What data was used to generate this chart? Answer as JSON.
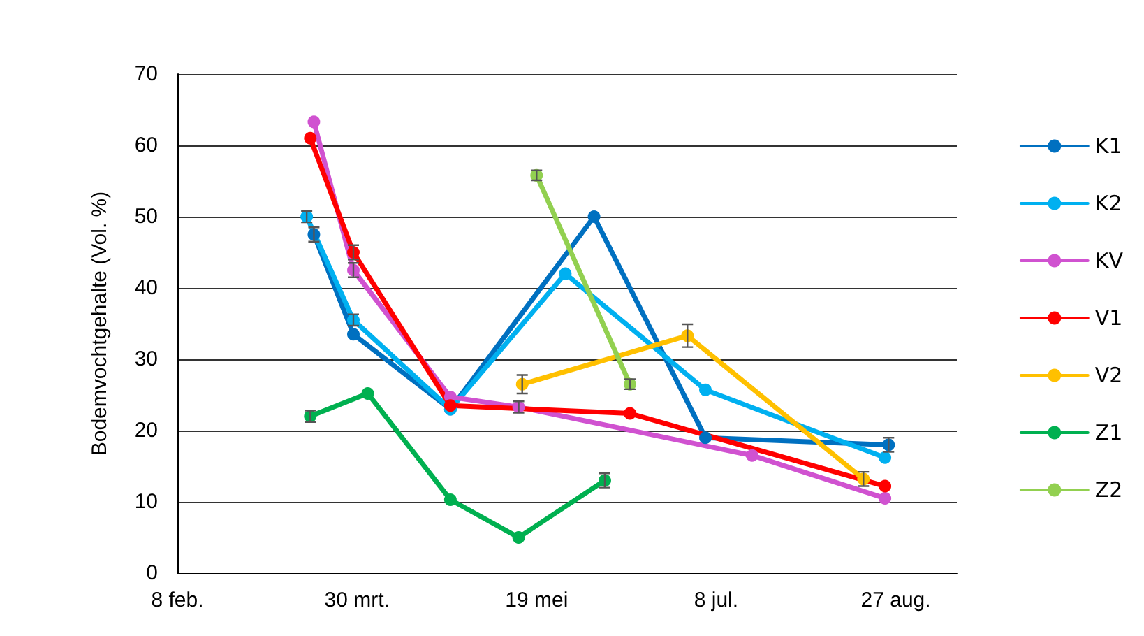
{
  "chart_data": {
    "type": "line",
    "ylabel": "Bodemvochtgehalte (Vol. %)",
    "xlim": [
      "--02-08",
      "--09-13"
    ],
    "ylim": [
      0,
      70
    ],
    "yticks": [
      0,
      10,
      20,
      30,
      40,
      50,
      60,
      70
    ],
    "xticks": [
      {
        "value": "--02-08",
        "label": "8 feb."
      },
      {
        "value": "--03-30",
        "label": "30 mrt."
      },
      {
        "value": "--05-19",
        "label": "19 mei"
      },
      {
        "value": "--07-08",
        "label": "8 jul."
      },
      {
        "value": "--08-27",
        "label": "27 aug."
      }
    ],
    "grid": "y",
    "legend": "right",
    "marker": "circle",
    "line_style": "solid",
    "series": [
      {
        "name": "K1",
        "color": "#0070c0",
        "x": [
          "--03-18",
          "--03-29",
          "--04-25",
          "--06-04",
          "--07-05",
          "--08-25"
        ],
        "values": [
          47.5,
          33.5,
          23,
          50,
          19,
          18
        ],
        "errors": [
          1.0,
          null,
          null,
          null,
          null,
          1.0
        ]
      },
      {
        "name": "K2",
        "color": "#00b0f0",
        "x": [
          "--03-16",
          "--03-29",
          "--04-25",
          "--05-27",
          "--07-05",
          "--08-24"
        ],
        "values": [
          50,
          35.5,
          23,
          42,
          25.7,
          16.2
        ],
        "errors": [
          0.8,
          0.8,
          null,
          null,
          null,
          null
        ]
      },
      {
        "name": "KV",
        "color": "#d052d0",
        "x": [
          "--03-18",
          "--03-29",
          "--04-25",
          "--05-14",
          "--07-18",
          "--08-24"
        ],
        "values": [
          63.3,
          42.5,
          24.7,
          23.3,
          16.5,
          10.5
        ],
        "errors": [
          null,
          1.0,
          null,
          0.8,
          null,
          null
        ]
      },
      {
        "name": "V1",
        "color": "#ff0000",
        "x": [
          "--03-17",
          "--03-29",
          "--04-25",
          "--06-14",
          "--08-24"
        ],
        "values": [
          61,
          45,
          23.5,
          22.4,
          12.2
        ],
        "errors": [
          null,
          1.0,
          null,
          null,
          null
        ]
      },
      {
        "name": "V2",
        "color": "#ffc000",
        "x": [
          "--05-15",
          "--06-30",
          "--08-18"
        ],
        "values": [
          26.5,
          33.3,
          13.2
        ],
        "errors": [
          1.3,
          1.6,
          1.0
        ]
      },
      {
        "name": "Z1",
        "color": "#00b050",
        "x": [
          "--03-17",
          "--04-02",
          "--04-25",
          "--05-14",
          "--06-07"
        ],
        "values": [
          22,
          25.2,
          10.3,
          5,
          13
        ],
        "errors": [
          0.8,
          null,
          null,
          null,
          1.0
        ]
      },
      {
        "name": "Z2",
        "color": "#92d050",
        "x": [
          "--05-19",
          "--06-14"
        ],
        "values": [
          55.8,
          26.5
        ],
        "errors": [
          0.7,
          0.7
        ]
      }
    ]
  }
}
